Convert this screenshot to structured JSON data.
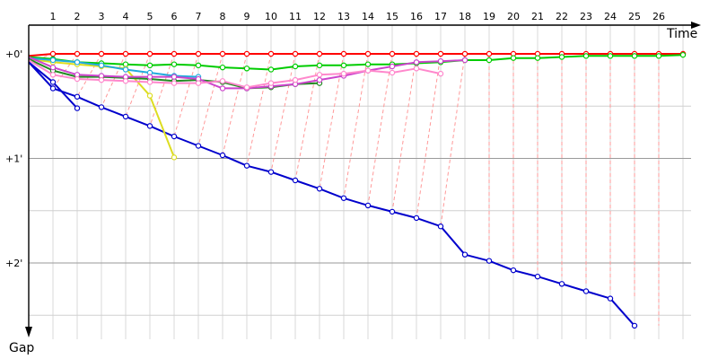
{
  "chart_data": {
    "type": "line",
    "x_axis_label": "Time",
    "y_axis_label": "Gap",
    "x_ticks": [
      1,
      2,
      3,
      4,
      5,
      6,
      7,
      8,
      9,
      10,
      11,
      12,
      13,
      14,
      15,
      16,
      17,
      18,
      19,
      20,
      21,
      22,
      23,
      24,
      25,
      26
    ],
    "y_ticks": [
      {
        "value": 0,
        "label": "+0'"
      },
      {
        "value": 1,
        "label": "+1'"
      },
      {
        "value": 2,
        "label": "+2'"
      }
    ],
    "y_range_minutes": [
      0,
      2.6
    ],
    "x_range": [
      0,
      27
    ],
    "y_direction": "down",
    "grid": true,
    "lap_link_color": "#ff9999",
    "series": [
      {
        "color": "#ff0000",
        "points": [
          [
            0,
            0.02
          ],
          [
            1,
            0.0
          ],
          [
            2,
            0.0
          ],
          [
            3,
            0.0
          ],
          [
            4,
            0.0
          ],
          [
            5,
            0.0
          ],
          [
            6,
            0.0
          ],
          [
            7,
            0.0
          ],
          [
            8,
            0.0
          ],
          [
            9,
            0.0
          ],
          [
            10,
            0.0
          ],
          [
            11,
            0.0
          ],
          [
            12,
            0.0
          ],
          [
            13,
            0.0
          ],
          [
            14,
            0.0
          ],
          [
            15,
            0.0
          ],
          [
            16,
            0.0
          ],
          [
            17,
            0.0
          ],
          [
            18,
            0.0
          ],
          [
            19,
            0.0
          ],
          [
            20,
            0.0
          ],
          [
            21,
            0.0
          ],
          [
            22,
            0.0
          ],
          [
            23,
            0.0
          ],
          [
            24,
            0.0
          ],
          [
            25,
            0.0
          ],
          [
            26,
            0.0
          ],
          [
            27,
            0.0
          ]
        ]
      },
      {
        "color": "#00cc00",
        "points": [
          [
            0,
            0.03
          ],
          [
            1,
            0.05
          ],
          [
            2,
            0.08
          ],
          [
            3,
            0.09
          ],
          [
            4,
            0.1
          ],
          [
            5,
            0.11
          ],
          [
            6,
            0.1
          ],
          [
            7,
            0.11
          ],
          [
            8,
            0.13
          ],
          [
            9,
            0.14
          ],
          [
            10,
            0.15
          ],
          [
            11,
            0.12
          ],
          [
            12,
            0.11
          ],
          [
            13,
            0.11
          ],
          [
            14,
            0.1
          ],
          [
            15,
            0.1
          ],
          [
            16,
            0.09
          ],
          [
            17,
            0.08
          ],
          [
            18,
            0.06
          ],
          [
            19,
            0.06
          ],
          [
            20,
            0.04
          ],
          [
            21,
            0.04
          ],
          [
            22,
            0.03
          ],
          [
            23,
            0.02
          ],
          [
            24,
            0.02
          ],
          [
            25,
            0.02
          ],
          [
            26,
            0.02
          ],
          [
            27,
            0.01
          ]
        ]
      },
      {
        "color": "#0000cc",
        "points": [
          [
            0,
            0.08
          ],
          [
            1,
            0.33
          ],
          [
            2,
            0.41
          ],
          [
            3,
            0.51
          ],
          [
            4,
            0.6
          ],
          [
            5,
            0.69
          ],
          [
            6,
            0.79
          ],
          [
            7,
            0.88
          ],
          [
            8,
            0.97
          ],
          [
            9,
            1.07
          ],
          [
            10,
            1.13
          ],
          [
            11,
            1.21
          ],
          [
            12,
            1.29
          ],
          [
            13,
            1.38
          ],
          [
            14,
            1.45
          ],
          [
            15,
            1.51
          ],
          [
            16,
            1.57
          ],
          [
            17,
            1.65
          ],
          [
            18,
            1.92
          ],
          [
            19,
            1.98
          ],
          [
            20,
            2.07
          ],
          [
            21,
            2.13
          ],
          [
            22,
            2.2
          ],
          [
            23,
            2.27
          ],
          [
            24,
            2.34
          ],
          [
            25,
            2.6
          ]
        ]
      },
      {
        "color": "#0000cc",
        "points": [
          [
            0,
            0.08
          ],
          [
            1,
            0.27
          ],
          [
            2,
            0.52
          ]
        ]
      },
      {
        "color": "#dddd22",
        "points": [
          [
            0,
            0.05
          ],
          [
            1,
            0.08
          ],
          [
            2,
            0.1
          ],
          [
            3,
            0.12
          ],
          [
            4,
            0.14
          ],
          [
            5,
            0.4
          ],
          [
            6,
            0.99
          ]
        ]
      },
      {
        "color": "#22aadd",
        "points": [
          [
            0,
            0.04
          ],
          [
            1,
            0.06
          ],
          [
            2,
            0.08
          ],
          [
            3,
            0.11
          ],
          [
            4,
            0.15
          ],
          [
            5,
            0.18
          ],
          [
            6,
            0.21
          ],
          [
            7,
            0.22
          ]
        ]
      },
      {
        "color": "#228b22",
        "points": [
          [
            0,
            0.05
          ],
          [
            1,
            0.16
          ],
          [
            2,
            0.22
          ],
          [
            3,
            0.22
          ],
          [
            4,
            0.23
          ],
          [
            5,
            0.24
          ],
          [
            6,
            0.26
          ],
          [
            7,
            0.25
          ],
          [
            8,
            0.27
          ],
          [
            9,
            0.33
          ],
          [
            10,
            0.32
          ],
          [
            11,
            0.29
          ],
          [
            12,
            0.28
          ]
        ]
      },
      {
        "color": "#cc44cc",
        "points": [
          [
            0,
            0.03
          ],
          [
            1,
            0.13
          ],
          [
            2,
            0.2
          ],
          [
            3,
            0.21
          ],
          [
            4,
            0.22
          ],
          [
            5,
            0.22
          ],
          [
            6,
            0.22
          ],
          [
            7,
            0.24
          ],
          [
            8,
            0.33
          ],
          [
            9,
            0.33
          ],
          [
            10,
            0.31
          ],
          [
            11,
            0.29
          ],
          [
            12,
            0.25
          ],
          [
            13,
            0.21
          ],
          [
            14,
            0.16
          ],
          [
            15,
            0.12
          ],
          [
            16,
            0.08
          ],
          [
            17,
            0.07
          ],
          [
            18,
            0.06
          ]
        ]
      },
      {
        "color": "#ff88cc",
        "points": [
          [
            0,
            0.06
          ],
          [
            1,
            0.2
          ],
          [
            2,
            0.24
          ],
          [
            3,
            0.25
          ],
          [
            4,
            0.26
          ],
          [
            5,
            0.27
          ],
          [
            6,
            0.28
          ],
          [
            7,
            0.28
          ],
          [
            8,
            0.26
          ],
          [
            9,
            0.32
          ],
          [
            10,
            0.28
          ],
          [
            11,
            0.25
          ],
          [
            12,
            0.2
          ],
          [
            13,
            0.19
          ],
          [
            14,
            0.16
          ],
          [
            15,
            0.18
          ],
          [
            16,
            0.14
          ],
          [
            17,
            0.19
          ]
        ]
      }
    ]
  }
}
